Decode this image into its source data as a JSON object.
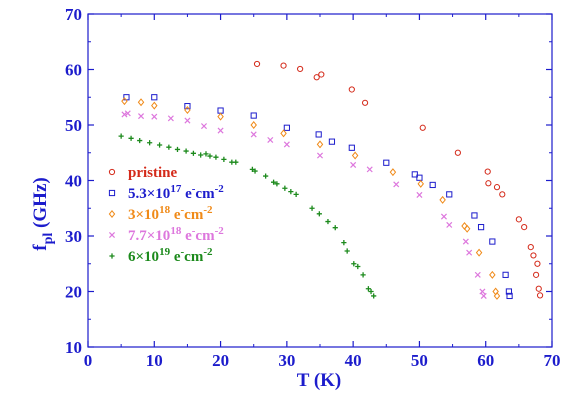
{
  "chart_data": {
    "type": "scatter",
    "xlabel": "T (K)",
    "ylabel_main": "f",
    "ylabel_sub": "pl",
    "ylabel_unit": " (GHz)",
    "xlim": [
      0,
      70
    ],
    "ylim": [
      10,
      70
    ],
    "xticks": [
      "0",
      "10",
      "20",
      "30",
      "40",
      "50",
      "60",
      "70"
    ],
    "yticks": [
      "10",
      "20",
      "30",
      "40",
      "50",
      "60",
      "70"
    ],
    "grid": false,
    "legend_position": "left",
    "axis_color": "#1c1ccc",
    "series": [
      {
        "label": {
          "pre": "pristine",
          "sup1": "",
          "mid": "",
          "sup2": "",
          "post": ""
        },
        "marker": "circle",
        "color": "#d42a1a",
        "points": [
          [
            25.5,
            61.0
          ],
          [
            29.5,
            60.7
          ],
          [
            32.0,
            60.1
          ],
          [
            34.5,
            58.6
          ],
          [
            35.2,
            59.1
          ],
          [
            39.8,
            56.4
          ],
          [
            41.8,
            54.0
          ],
          [
            50.5,
            49.5
          ],
          [
            55.8,
            45.0
          ],
          [
            60.3,
            41.6
          ],
          [
            60.4,
            39.5
          ],
          [
            61.7,
            38.8
          ],
          [
            62.5,
            37.5
          ],
          [
            65.0,
            33.0
          ],
          [
            65.8,
            31.6
          ],
          [
            66.8,
            28.0
          ],
          [
            67.2,
            26.5
          ],
          [
            67.6,
            23.0
          ],
          [
            67.8,
            25.0
          ],
          [
            68.0,
            20.5
          ],
          [
            68.2,
            19.3
          ]
        ]
      },
      {
        "label": {
          "pre": "5.3×10",
          "sup1": "17",
          "mid": " e",
          "sup2": "-",
          "post": "cm",
          "sup3": "-2"
        },
        "marker": "square",
        "color": "#1c1ccc",
        "points": [
          [
            5.8,
            55.0
          ],
          [
            10.0,
            55.0
          ],
          [
            15.0,
            53.4
          ],
          [
            20.0,
            52.6
          ],
          [
            25.0,
            51.7
          ],
          [
            30.0,
            49.5
          ],
          [
            34.8,
            48.3
          ],
          [
            36.8,
            47.0
          ],
          [
            39.8,
            45.9
          ],
          [
            45.0,
            43.2
          ],
          [
            49.3,
            41.1
          ],
          [
            50.0,
            40.5
          ],
          [
            52.0,
            39.2
          ],
          [
            54.5,
            37.5
          ],
          [
            58.3,
            33.7
          ],
          [
            59.3,
            31.6
          ],
          [
            61.0,
            29.0
          ],
          [
            63.0,
            23.0
          ],
          [
            63.5,
            20.0
          ],
          [
            63.6,
            19.2
          ]
        ]
      },
      {
        "label": {
          "pre": "3×10",
          "sup1": "18",
          "mid": " e",
          "sup2": "-",
          "post": "cm",
          "sup3": "-2"
        },
        "marker": "diamond",
        "color": "#f08a18",
        "points": [
          [
            5.5,
            54.3
          ],
          [
            8.0,
            54.1
          ],
          [
            10.0,
            53.5
          ],
          [
            15.0,
            52.7
          ],
          [
            20.0,
            51.5
          ],
          [
            25.0,
            50.0
          ],
          [
            29.5,
            48.5
          ],
          [
            35.0,
            46.5
          ],
          [
            40.3,
            44.5
          ],
          [
            46.0,
            41.5
          ],
          [
            50.2,
            39.4
          ],
          [
            53.5,
            36.5
          ],
          [
            56.8,
            31.8
          ],
          [
            57.2,
            31.3
          ],
          [
            59.0,
            27.0
          ],
          [
            61.0,
            23.0
          ],
          [
            61.5,
            20.0
          ],
          [
            61.7,
            19.2
          ]
        ]
      },
      {
        "label": {
          "pre": "7.7×10",
          "sup1": "18",
          "mid": " e",
          "sup2": "-",
          "post": "cm",
          "sup3": "-2"
        },
        "marker": "cross",
        "color": "#dd77dd",
        "points": [
          [
            5.5,
            51.9
          ],
          [
            6.0,
            52.1
          ],
          [
            8.0,
            51.6
          ],
          [
            10.0,
            51.5
          ],
          [
            12.5,
            51.2
          ],
          [
            15.0,
            50.8
          ],
          [
            17.5,
            49.8
          ],
          [
            20.0,
            49.0
          ],
          [
            25.0,
            48.3
          ],
          [
            27.5,
            47.3
          ],
          [
            30.0,
            46.5
          ],
          [
            35.0,
            44.5
          ],
          [
            40.0,
            42.8
          ],
          [
            42.5,
            42.0
          ],
          [
            46.5,
            39.3
          ],
          [
            50.0,
            37.4
          ],
          [
            53.7,
            33.5
          ],
          [
            54.5,
            32.0
          ],
          [
            57.0,
            29.0
          ],
          [
            57.5,
            27.0
          ],
          [
            58.8,
            23.0
          ],
          [
            59.5,
            20.0
          ],
          [
            59.7,
            19.2
          ]
        ]
      },
      {
        "label": {
          "pre": "6×10",
          "sup1": "19",
          "mid": " e",
          "sup2": "-",
          "post": "cm",
          "sup3": "-2"
        },
        "marker": "plus",
        "color": "#1c8a1c",
        "points": [
          [
            5.0,
            48.0
          ],
          [
            6.5,
            47.6
          ],
          [
            7.8,
            47.2
          ],
          [
            9.3,
            46.8
          ],
          [
            10.8,
            46.4
          ],
          [
            12.2,
            46.0
          ],
          [
            13.5,
            45.6
          ],
          [
            14.8,
            45.3
          ],
          [
            15.9,
            44.9
          ],
          [
            17.0,
            44.6
          ],
          [
            17.8,
            44.8
          ],
          [
            18.4,
            44.4
          ],
          [
            19.3,
            44.2
          ],
          [
            20.5,
            43.8
          ],
          [
            21.7,
            43.3
          ],
          [
            22.3,
            43.3
          ],
          [
            24.8,
            42.0
          ],
          [
            25.2,
            41.7
          ],
          [
            26.8,
            40.8
          ],
          [
            28.0,
            39.7
          ],
          [
            28.5,
            39.4
          ],
          [
            29.7,
            38.6
          ],
          [
            30.6,
            38.0
          ],
          [
            31.4,
            37.5
          ],
          [
            33.8,
            35.0
          ],
          [
            34.9,
            34.0
          ],
          [
            36.2,
            32.6
          ],
          [
            37.3,
            31.5
          ],
          [
            38.6,
            28.8
          ],
          [
            39.1,
            27.3
          ],
          [
            40.1,
            25.0
          ],
          [
            40.7,
            24.5
          ],
          [
            41.5,
            23.0
          ],
          [
            42.3,
            20.5
          ],
          [
            42.7,
            20.0
          ],
          [
            43.1,
            19.2
          ]
        ]
      }
    ]
  }
}
